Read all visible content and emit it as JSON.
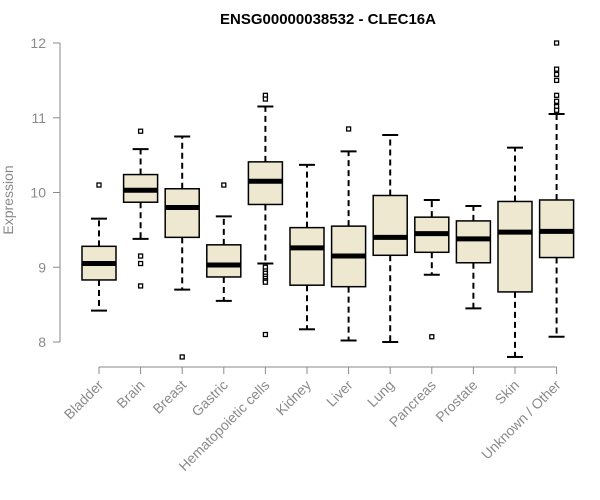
{
  "chart_data": {
    "type": "boxplot",
    "title": "ENSG00000038532 - CLEC16A",
    "xlabel": "",
    "ylabel": "Expression",
    "ylim": [
      7.8,
      12.1
    ],
    "yticks": [
      8,
      9,
      10,
      11,
      12
    ],
    "grid": false,
    "colors": {
      "box_fill": "#eee8d0",
      "box_stroke": "#000000",
      "axis": "#8a8a8a"
    },
    "categories": [
      "Bladder",
      "Brain",
      "Breast",
      "Gastric",
      "Hematopoietic cells",
      "Kidney",
      "Liver",
      "Lung",
      "Pancreas",
      "Prostate",
      "Skin",
      "Unknown / Other"
    ],
    "boxes": [
      {
        "category": "Bladder",
        "whisker_low": 8.42,
        "q1": 8.83,
        "median": 9.05,
        "q3": 9.28,
        "whisker_high": 9.65,
        "outliers": [
          10.1
        ]
      },
      {
        "category": "Brain",
        "whisker_low": 9.38,
        "q1": 9.87,
        "median": 10.03,
        "q3": 10.24,
        "whisker_high": 10.58,
        "outliers": [
          10.82,
          9.15,
          9.05,
          8.75
        ]
      },
      {
        "category": "Breast",
        "whisker_low": 8.7,
        "q1": 9.4,
        "median": 9.8,
        "q3": 10.05,
        "whisker_high": 10.75,
        "outliers": [
          7.8
        ]
      },
      {
        "category": "Gastric",
        "whisker_low": 8.55,
        "q1": 8.87,
        "median": 9.03,
        "q3": 9.3,
        "whisker_high": 9.68,
        "outliers": [
          10.1
        ]
      },
      {
        "category": "Hematopoietic cells",
        "whisker_low": 9.05,
        "q1": 9.84,
        "median": 10.15,
        "q3": 10.41,
        "whisker_high": 11.15,
        "outliers": [
          11.3,
          11.25,
          9.0,
          8.95,
          8.92,
          8.88,
          8.85,
          8.82,
          8.8,
          8.1
        ]
      },
      {
        "category": "Kidney",
        "whisker_low": 8.17,
        "q1": 8.76,
        "median": 9.26,
        "q3": 9.53,
        "whisker_high": 10.37,
        "outliers": []
      },
      {
        "category": "Liver",
        "whisker_low": 8.02,
        "q1": 8.74,
        "median": 9.15,
        "q3": 9.55,
        "whisker_high": 10.55,
        "outliers": [
          10.85
        ]
      },
      {
        "category": "Lung",
        "whisker_low": 8.0,
        "q1": 9.16,
        "median": 9.4,
        "q3": 9.96,
        "whisker_high": 10.77,
        "outliers": []
      },
      {
        "category": "Pancreas",
        "whisker_low": 8.9,
        "q1": 9.2,
        "median": 9.45,
        "q3": 9.67,
        "whisker_high": 9.9,
        "outliers": [
          8.07
        ]
      },
      {
        "category": "Prostate",
        "whisker_low": 8.45,
        "q1": 9.06,
        "median": 9.38,
        "q3": 9.62,
        "whisker_high": 9.82,
        "outliers": []
      },
      {
        "category": "Skin",
        "whisker_low": 7.8,
        "q1": 8.67,
        "median": 9.47,
        "q3": 9.88,
        "whisker_high": 10.6,
        "outliers": []
      },
      {
        "category": "Unknown / Other",
        "whisker_low": 8.07,
        "q1": 9.13,
        "median": 9.48,
        "q3": 9.9,
        "whisker_high": 11.05,
        "outliers": [
          12.0,
          11.65,
          11.58,
          11.5,
          11.3,
          11.22,
          11.15,
          11.1
        ]
      }
    ]
  }
}
